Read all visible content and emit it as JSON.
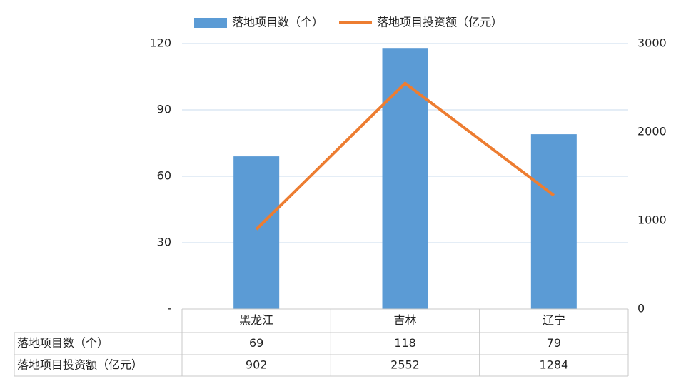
{
  "chart_data": {
    "type": "bar",
    "categories": [
      "黑龙江",
      "吉林",
      "辽宁"
    ],
    "series": [
      {
        "name": "落地项目数（个）",
        "type": "bar",
        "color": "#5b9bd5",
        "values": [
          69,
          118,
          79
        ]
      },
      {
        "name": "落地项目投资额（亿元）",
        "type": "line",
        "color": "#ed7d31",
        "axis": "y2",
        "values": [
          902,
          2552,
          1284
        ]
      }
    ],
    "ylim": [
      0,
      120
    ],
    "yticks": [
      {
        "value": 0,
        "label": "-"
      },
      30,
      60,
      90,
      120
    ],
    "y2lim": [
      0,
      3000
    ],
    "y2ticks": [
      0,
      1000,
      2000,
      3000
    ],
    "grid": true,
    "legend": "top",
    "data_table": true
  }
}
